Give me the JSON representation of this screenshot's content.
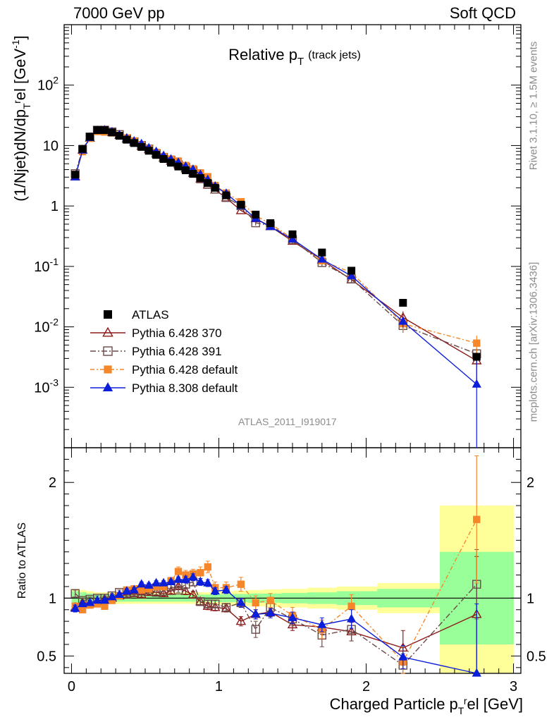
{
  "header": {
    "energy": "7000 GeV pp",
    "category": "Soft QCD"
  },
  "side_labels": {
    "rivet": "Rivet 3.1.10, ≥ 1.5M events",
    "site": "mcplots.cern.ch [arXiv:1306.3436]"
  },
  "watermark": "ATLAS_2011_I919017",
  "ratio_ylabel": "Ratio to ATLAS",
  "chart_data": {
    "type": "scatter",
    "title_main": "Relative p",
    "title_sub": "T",
    "title_suffix": "(track jets)",
    "ylabel_parts": [
      "(1/Njet)dN/dp",
      "T",
      "r",
      "el [GeV",
      "-1",
      "]"
    ],
    "xlabel_parts": [
      "Charged Particle p",
      "T",
      "r",
      "el [GeV]"
    ],
    "xlim": [
      -0.05,
      3.05
    ],
    "ylim_main": [
      0.0001,
      1000
    ],
    "ylog": true,
    "ylim_ratio": [
      0.35,
      2.3
    ],
    "x_ticks": [
      "0",
      "1",
      "2",
      "3"
    ],
    "main_y_ticks": [
      "10^-3",
      "10^-2",
      "10^-1",
      "1",
      "10",
      "10^2"
    ],
    "ratio_y_ticks": [
      "0.5",
      "1",
      "2"
    ],
    "legend_position": "left-middle",
    "colors": {
      "data": "#000000",
      "p370": "#8b1a1a",
      "p391": "#6b4a4a",
      "pdef": "#f5872a",
      "p8": "#0b1ed9",
      "band_inner": "#99ff99",
      "band_outer": "#ffff99"
    },
    "x": [
      0.025,
      0.075,
      0.125,
      0.175,
      0.225,
      0.275,
      0.325,
      0.375,
      0.425,
      0.475,
      0.525,
      0.575,
      0.625,
      0.675,
      0.725,
      0.775,
      0.825,
      0.875,
      0.925,
      0.975,
      1.05,
      1.15,
      1.25,
      1.35,
      1.5,
      1.7,
      1.9,
      2.25,
      2.75
    ],
    "series": [
      {
        "name": "ATLAS",
        "key": "data",
        "values": [
          3.3,
          8.8,
          14.0,
          18.0,
          18.0,
          16.5,
          14.5,
          12.5,
          11.0,
          9.5,
          8.2,
          7.0,
          6.0,
          5.2,
          4.5,
          3.9,
          3.4,
          2.9,
          2.4,
          2.0,
          1.5,
          1.05,
          0.72,
          0.52,
          0.34,
          0.17,
          0.085,
          0.025,
          0.0032
        ],
        "band_inner": [
          0.06,
          0.05,
          0.04,
          0.03,
          0.03,
          0.03,
          0.03,
          0.03,
          0.03,
          0.03,
          0.03,
          0.03,
          0.03,
          0.03,
          0.03,
          0.03,
          0.03,
          0.03,
          0.03,
          0.035,
          0.035,
          0.035,
          0.04,
          0.04,
          0.045,
          0.05,
          0.06,
          0.08,
          0.4
        ],
        "band_outer": [
          0.08,
          0.07,
          0.06,
          0.05,
          0.05,
          0.05,
          0.05,
          0.05,
          0.05,
          0.05,
          0.05,
          0.05,
          0.05,
          0.05,
          0.05,
          0.05,
          0.05,
          0.05,
          0.05,
          0.06,
          0.06,
          0.065,
          0.07,
          0.075,
          0.08,
          0.09,
          0.1,
          0.13,
          0.8
        ]
      },
      {
        "name": "Pythia 6.428 370",
        "key": "p370",
        "marker": "triangle-open",
        "dash": "",
        "ratio": [
          0.92,
          0.96,
          0.95,
          0.97,
          0.99,
          1.0,
          1.02,
          1.03,
          1.04,
          1.03,
          1.05,
          1.05,
          1.04,
          1.06,
          1.1,
          1.06,
          1.03,
          0.97,
          0.93,
          0.92,
          0.91,
          0.8,
          0.86,
          0.88,
          0.77,
          0.75,
          0.71,
          0.57,
          0.86
        ],
        "err": [
          0.03,
          0.02,
          0.02,
          0.02,
          0.02,
          0.02,
          0.02,
          0.02,
          0.02,
          0.02,
          0.02,
          0.02,
          0.02,
          0.02,
          0.02,
          0.03,
          0.03,
          0.03,
          0.03,
          0.03,
          0.03,
          0.04,
          0.04,
          0.04,
          0.05,
          0.06,
          0.08,
          0.15,
          0.5
        ]
      },
      {
        "name": "Pythia 6.428 391",
        "key": "p391",
        "marker": "square-open",
        "dash": "8 3 2 3",
        "ratio": [
          1.04,
          0.98,
          0.99,
          1.0,
          1.0,
          1.02,
          1.05,
          1.04,
          1.05,
          1.06,
          1.07,
          1.05,
          1.06,
          1.1,
          1.07,
          1.12,
          1.14,
          0.97,
          0.95,
          0.95,
          0.92,
          0.96,
          0.73,
          0.92,
          0.82,
          0.68,
          0.73,
          0.42,
          1.12
        ],
        "err": [
          0.03,
          0.02,
          0.02,
          0.02,
          0.02,
          0.02,
          0.02,
          0.02,
          0.02,
          0.02,
          0.02,
          0.02,
          0.02,
          0.02,
          0.02,
          0.03,
          0.03,
          0.03,
          0.03,
          0.03,
          0.03,
          0.04,
          0.07,
          0.05,
          0.06,
          0.1,
          0.1,
          0.1,
          0.3
        ]
      },
      {
        "name": "Pythia 6.428 default",
        "key": "pdef",
        "marker": "square-filled",
        "dash": "6 3 2 3",
        "ratio": [
          0.93,
          0.9,
          0.94,
          0.95,
          0.93,
          0.98,
          1.02,
          1.07,
          1.08,
          1.07,
          1.08,
          1.1,
          1.1,
          1.15,
          1.23,
          1.2,
          1.21,
          1.22,
          1.27,
          1.09,
          1.09,
          1.12,
          0.96,
          0.98,
          0.85,
          0.73,
          0.93,
          0.45,
          1.68
        ],
        "err": [
          0.03,
          0.02,
          0.02,
          0.02,
          0.02,
          0.02,
          0.02,
          0.02,
          0.02,
          0.02,
          0.02,
          0.03,
          0.03,
          0.03,
          0.04,
          0.04,
          0.04,
          0.05,
          0.05,
          0.05,
          0.05,
          0.06,
          0.06,
          0.06,
          0.07,
          0.08,
          0.1,
          0.12,
          0.55
        ]
      },
      {
        "name": "Pythia 8.308 default",
        "key": "p8",
        "marker": "triangle-filled",
        "dash": "",
        "ratio": [
          0.91,
          0.95,
          0.96,
          0.98,
          0.98,
          1.01,
          1.03,
          1.06,
          1.07,
          1.12,
          1.11,
          1.13,
          1.13,
          1.14,
          1.16,
          1.16,
          1.18,
          1.14,
          1.13,
          1.06,
          1.07,
          0.96,
          0.86,
          0.87,
          0.83,
          0.77,
          0.82,
          0.49,
          0.35
        ],
        "err": [
          0.03,
          0.02,
          0.02,
          0.02,
          0.02,
          0.02,
          0.02,
          0.02,
          0.02,
          0.02,
          0.02,
          0.02,
          0.02,
          0.02,
          0.02,
          0.03,
          0.03,
          0.03,
          0.03,
          0.03,
          0.03,
          0.04,
          0.04,
          0.04,
          0.05,
          0.06,
          0.08,
          0.1,
          0.6
        ]
      }
    ]
  }
}
